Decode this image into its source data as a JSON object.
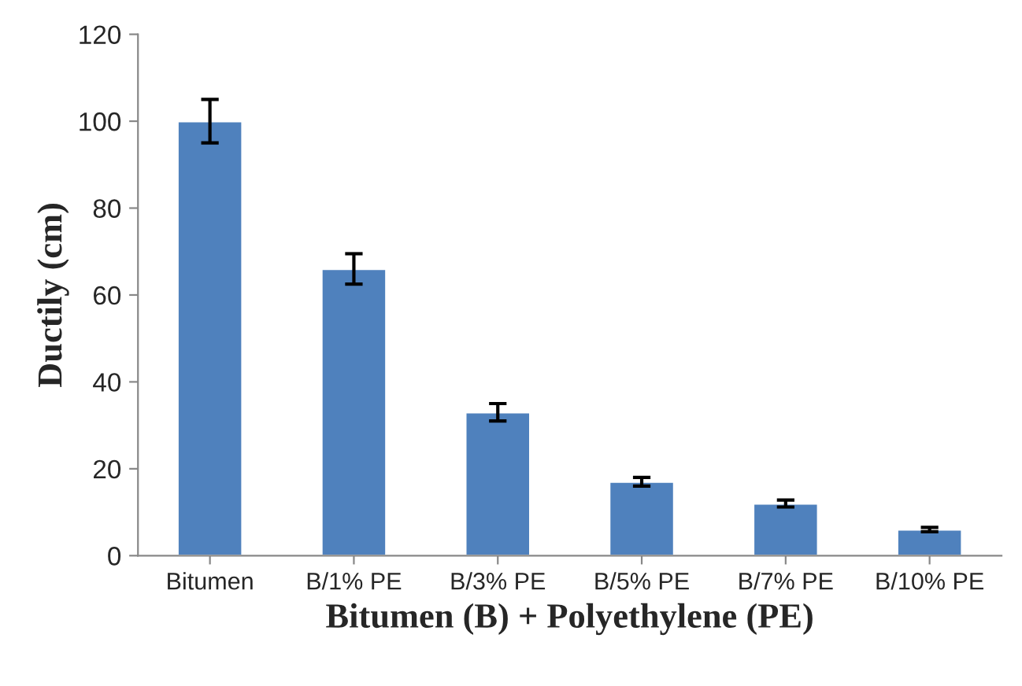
{
  "chart_data": {
    "type": "bar",
    "xlabel": "Bitumen (B) + Polyethylene (PE)",
    "ylabel": "Ductily (cm)",
    "categories": [
      "Bitumen",
      "B/1% PE",
      "B/3% PE",
      "B/5% PE",
      "B/7% PE",
      "B/10% PE"
    ],
    "values": [
      100,
      66,
      33,
      17,
      12,
      6
    ],
    "errors": [
      5,
      3.5,
      2,
      1,
      0.8,
      0.5
    ],
    "color": "#4f81bd",
    "ylim": [
      0,
      120
    ],
    "yticks": [
      0,
      20,
      40,
      60,
      80,
      100,
      120
    ],
    "grid": false,
    "legend": false
  }
}
